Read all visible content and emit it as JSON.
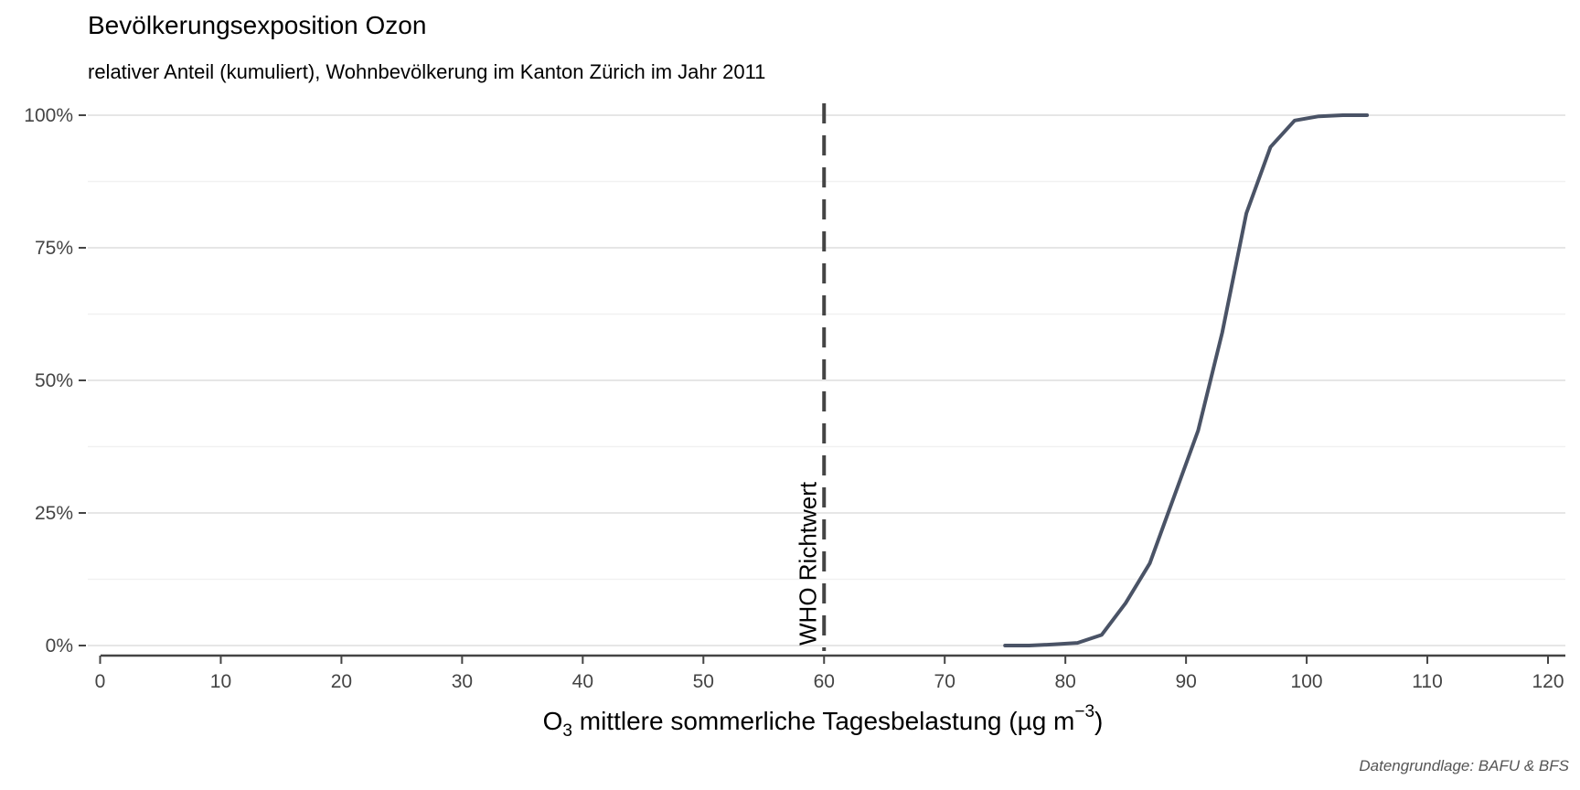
{
  "title": "Bevölkerungsexposition Ozon",
  "subtitle": "relativer Anteil (kumuliert), Wohnbevölkerung im Kanton Zürich im Jahr 2011",
  "caption": "Datengrundlage: BAFU & BFS",
  "colors": {
    "line": "#4a5366",
    "reference": "#444444",
    "grid": "#e6e6e6",
    "axis": "#444444"
  },
  "chart_data": {
    "type": "line",
    "title": "Bevölkerungsexposition Ozon",
    "subtitle": "relativer Anteil (kumuliert), Wohnbevölkerung im Kanton Zürich im Jahr 2011",
    "xlabel": {
      "prefix": "O",
      "sub": "3",
      "main": " mittlere sommerliche Tagesbelastung (µg m",
      "sup": "−3",
      "suffix": ")"
    },
    "ylabel": "",
    "xlim": [
      0,
      120
    ],
    "ylim": [
      0,
      1
    ],
    "x_ticks": [
      0,
      10,
      20,
      30,
      40,
      50,
      60,
      70,
      80,
      90,
      100,
      110,
      120
    ],
    "x_tick_labels": [
      "0",
      "10",
      "20",
      "30",
      "40",
      "50",
      "60",
      "70",
      "80",
      "90",
      "100",
      "110",
      "120"
    ],
    "y_ticks": [
      0,
      0.25,
      0.5,
      0.75,
      1
    ],
    "y_tick_labels": [
      "0%",
      "25%",
      "50%",
      "75%",
      "100%"
    ],
    "grid": true,
    "series": [
      {
        "x": [
          75,
          77,
          79,
          81,
          83,
          85,
          87,
          89,
          91,
          93,
          95,
          97,
          99,
          101,
          103,
          105
        ],
        "values": [
          0,
          0,
          0.002,
          0.005,
          0.02,
          0.08,
          0.155,
          0.28,
          0.405,
          0.59,
          0.815,
          0.94,
          0.99,
          0.998,
          1.0,
          1.0
        ]
      }
    ],
    "reference_line": {
      "x": 60,
      "label": "WHO Richtwert",
      "style": "dashed"
    }
  }
}
